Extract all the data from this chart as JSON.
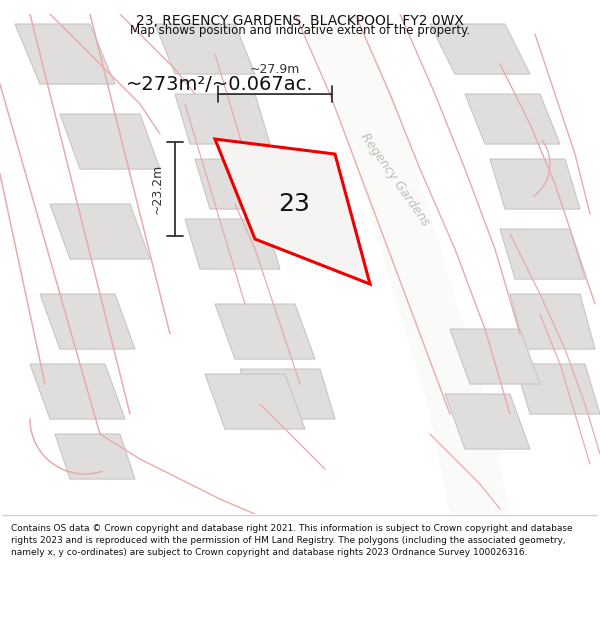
{
  "title": "23, REGENCY GARDENS, BLACKPOOL, FY2 0WX",
  "subtitle": "Map shows position and indicative extent of the property.",
  "area_text": "~273m²/~0.067ac.",
  "plot_number": "23",
  "dim_width": "~27.9m",
  "dim_height": "~23.2m",
  "street_label": "Regency Gardens",
  "footer": "Contains OS data © Crown copyright and database right 2021. This information is subject to Crown copyright and database rights 2023 and is reproduced with the permission of HM Land Registry. The polygons (including the associated geometry, namely x, y co-ordinates) are subject to Crown copyright and database rights 2023 Ordnance Survey 100026316.",
  "map_bg": "#f5f4f2",
  "building_fill": "#e0dedd",
  "building_edge": "#c8c5c2",
  "road_fill": "#fafaf8",
  "plot_fill": "#f5f4f2",
  "plot_edge": "#ee0000",
  "pink": "#e8aaaa",
  "pink_light": "#eebbbb",
  "dim_color": "#333333",
  "street_color": "#c0bcb8",
  "title_color": "#111111",
  "footer_color": "#111111",
  "footer_bg": "#ffffff",
  "title_fontsize": 10,
  "subtitle_fontsize": 8.5,
  "area_fontsize": 14,
  "plot_label_fontsize": 18,
  "dim_fontsize": 9,
  "street_fontsize": 9,
  "footer_fontsize": 6.5
}
